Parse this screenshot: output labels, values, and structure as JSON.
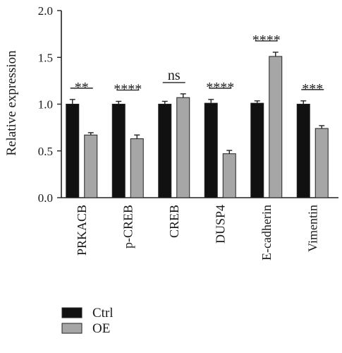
{
  "chart_data": {
    "type": "bar",
    "categories": [
      "PRKACB",
      "p-CREB",
      "CREB",
      "DUSP4",
      "E-cadherin",
      "Vimentin"
    ],
    "series": [
      {
        "name": "Ctrl",
        "color": "#111111",
        "values": [
          1.0,
          1.0,
          1.0,
          1.01,
          1.01,
          1.0
        ],
        "errors": [
          0.05,
          0.03,
          0.03,
          0.04,
          0.025,
          0.035
        ]
      },
      {
        "name": "OE",
        "color": "#a6a6a6",
        "values": [
          0.67,
          0.63,
          1.07,
          0.47,
          1.51,
          0.74
        ],
        "errors": [
          0.025,
          0.04,
          0.04,
          0.035,
          0.045,
          0.03
        ]
      }
    ],
    "significance": [
      "**",
      "****",
      "ns",
      "****",
      "****",
      "***"
    ],
    "ylabel": "Relative expression",
    "xlabel": "",
    "ylim": [
      0,
      2.0
    ],
    "yticks": [
      "0.0",
      "0.5",
      "1.0",
      "1.5",
      "2.0"
    ],
    "grid": false,
    "legend_position": "bottom-left"
  }
}
